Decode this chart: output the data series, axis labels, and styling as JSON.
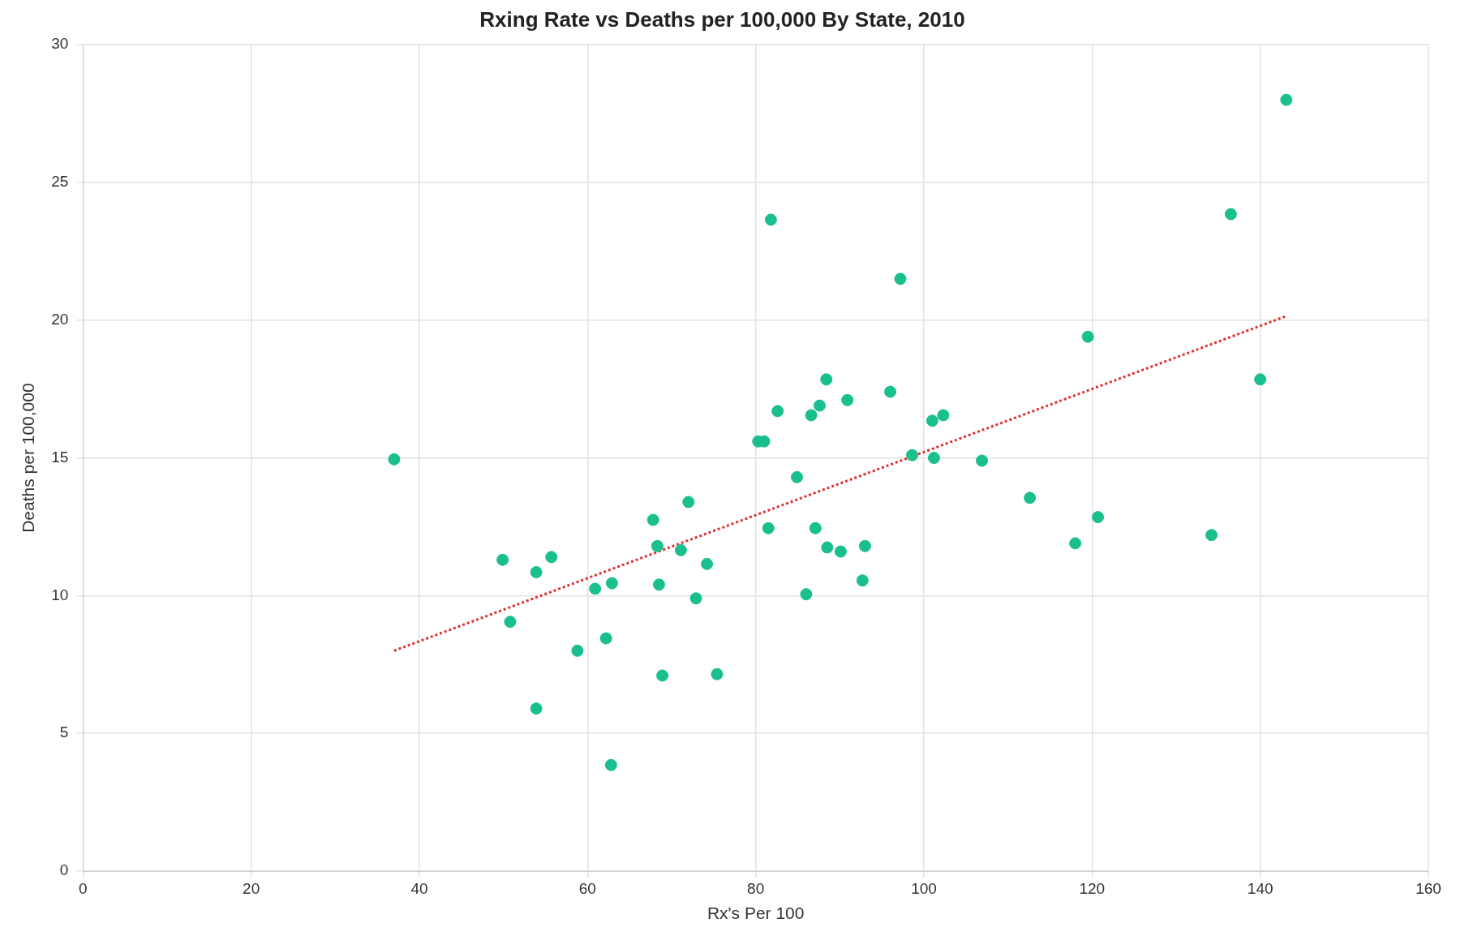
{
  "chart_data": {
    "type": "scatter",
    "title": "Rxing Rate vs Deaths per 100,000 By State, 2010",
    "xlabel": "Rx's Per 100",
    "ylabel": "Deaths per 100,000",
    "xlim": [
      0,
      160
    ],
    "xticks": [
      0,
      20,
      40,
      60,
      80,
      100,
      120,
      140,
      160
    ],
    "ylim": [
      0,
      30
    ],
    "yticks": [
      0,
      5,
      10,
      15,
      20,
      25,
      30
    ],
    "grid": true,
    "legend": false,
    "marker": "circle",
    "series": [
      {
        "type": "scatter",
        "color": "#1abf8e",
        "x": [
          37.0,
          49.9,
          50.8,
          53.9,
          53.9,
          55.7,
          58.8,
          60.9,
          62.2,
          62.9,
          62.8,
          67.8,
          68.3,
          68.5,
          68.9,
          71.1,
          72.0,
          72.9,
          74.2,
          75.4,
          80.3,
          81.0,
          81.5,
          81.8,
          82.6,
          84.9,
          86.0,
          86.6,
          87.1,
          87.6,
          88.4,
          88.5,
          90.1,
          90.9,
          92.7,
          93.0,
          96.0,
          97.2,
          98.6,
          101.0,
          101.2,
          102.3,
          106.9,
          112.6,
          118.0,
          119.5,
          120.7,
          134.2,
          136.5,
          140.0,
          143.1
        ],
        "values": [
          14.95,
          11.3,
          9.05,
          10.85,
          5.9,
          11.4,
          8.0,
          10.25,
          8.45,
          10.45,
          3.85,
          12.75,
          11.8,
          10.4,
          7.1,
          11.65,
          13.4,
          9.9,
          11.15,
          7.15,
          15.6,
          15.6,
          12.45,
          23.65,
          16.7,
          14.3,
          10.05,
          16.55,
          12.45,
          16.9,
          17.85,
          11.75,
          11.6,
          17.1,
          10.55,
          11.8,
          17.4,
          21.5,
          15.1,
          16.35,
          15.0,
          16.55,
          14.9,
          13.55,
          11.9,
          19.4,
          12.85,
          12.2,
          23.85,
          17.85,
          28.0
        ]
      },
      {
        "type": "line",
        "color": "#e03030",
        "line_style": "dotted",
        "marker": "none",
        "x": [
          37.0,
          143.1
        ],
        "values": [
          8.0,
          20.15
        ]
      }
    ]
  }
}
